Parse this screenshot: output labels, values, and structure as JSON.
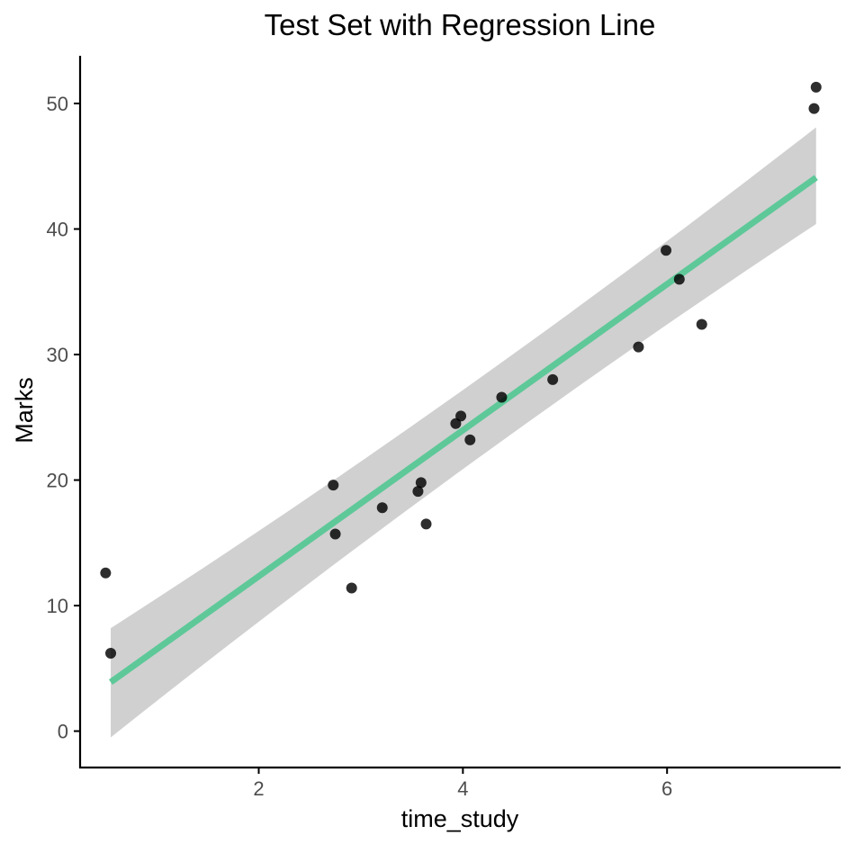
{
  "chart_data": {
    "type": "scatter",
    "title": "Test Set with Regression Line",
    "xlabel": "time_study",
    "ylabel": "Marks",
    "xlim": [
      0.25,
      7.7
    ],
    "ylim": [
      -2.9,
      53.8
    ],
    "xticks": [
      2,
      4,
      6
    ],
    "yticks": [
      0,
      10,
      20,
      30,
      40,
      50
    ],
    "grid": false,
    "legend": "none",
    "points": [
      {
        "x": 0.5,
        "y": 12.6
      },
      {
        "x": 0.55,
        "y": 6.2
      },
      {
        "x": 2.73,
        "y": 19.6
      },
      {
        "x": 2.75,
        "y": 15.7
      },
      {
        "x": 2.91,
        "y": 11.4
      },
      {
        "x": 3.21,
        "y": 17.8
      },
      {
        "x": 3.56,
        "y": 19.1
      },
      {
        "x": 3.59,
        "y": 19.8
      },
      {
        "x": 3.64,
        "y": 16.5
      },
      {
        "x": 3.93,
        "y": 24.5
      },
      {
        "x": 3.98,
        "y": 25.1
      },
      {
        "x": 4.07,
        "y": 23.2
      },
      {
        "x": 4.38,
        "y": 26.6
      },
      {
        "x": 4.88,
        "y": 28.0
      },
      {
        "x": 5.72,
        "y": 30.6
      },
      {
        "x": 5.99,
        "y": 38.3
      },
      {
        "x": 6.12,
        "y": 36.0
      },
      {
        "x": 6.34,
        "y": 32.4
      },
      {
        "x": 7.44,
        "y": 49.6
      },
      {
        "x": 7.46,
        "y": 51.3
      }
    ],
    "regression": {
      "x": [
        0.55,
        7.46
      ],
      "y": [
        3.9,
        44.1
      ],
      "ci_lower": [
        -0.5,
        40.4
      ],
      "ci_upper": [
        8.2,
        48.1
      ]
    },
    "colors": {
      "points": "#000000",
      "line": "#5ec899",
      "band": "#c8c8c8",
      "axis": "#000000",
      "tick_text": "#4d4d4d"
    }
  }
}
